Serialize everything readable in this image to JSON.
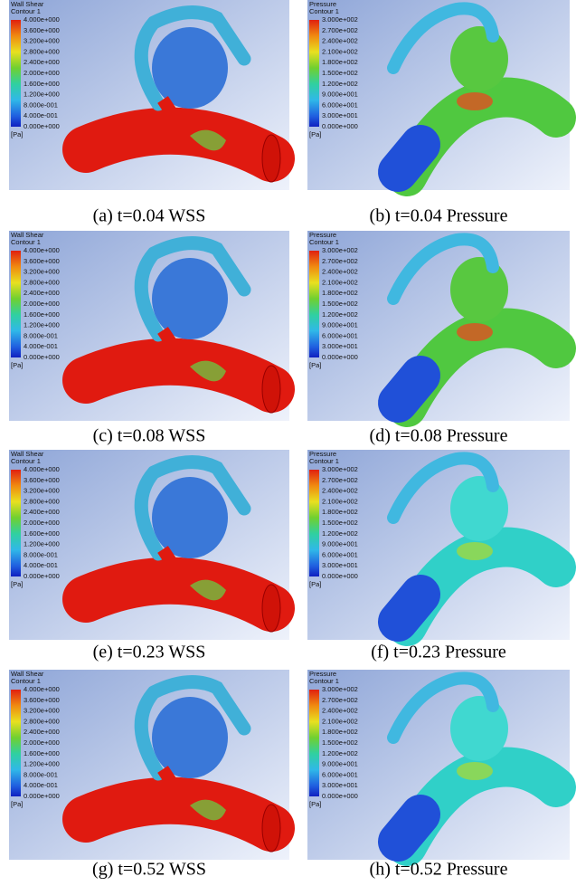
{
  "panels": [
    {
      "legend_title": "Wall Shear",
      "legend_subtitle": "Contour 1",
      "legend_labels": [
        "4.000e+000",
        "3.600e+000",
        "3.200e+000",
        "2.800e+000",
        "2.400e+000",
        "2.000e+000",
        "1.600e+000",
        "1.200e+000",
        "8.000e-001",
        "4.000e-001",
        "0.000e+000"
      ],
      "unit": "[Pa]",
      "caption": "(a) t=0.04 WSS"
    },
    {
      "legend_title": "Pressure",
      "legend_subtitle": "Contour 1",
      "legend_labels": [
        "3.000e+002",
        "2.700e+002",
        "2.400e+002",
        "2.100e+002",
        "1.800e+002",
        "1.500e+002",
        "1.200e+002",
        "9.000e+001",
        "6.000e+001",
        "3.000e+001",
        "0.000e+000"
      ],
      "unit": "[Pa]",
      "caption": "(b) t=0.04 Pressure"
    },
    {
      "legend_title": "Wall Shear",
      "legend_subtitle": "Contour 1",
      "legend_labels": [
        "4.000e+000",
        "3.600e+000",
        "3.200e+000",
        "2.800e+000",
        "2.400e+000",
        "2.000e+000",
        "1.600e+000",
        "1.200e+000",
        "8.000e-001",
        "4.000e-001",
        "0.000e+000"
      ],
      "unit": "[Pa]",
      "caption": "(c) t=0.08 WSS"
    },
    {
      "legend_title": "Pressure",
      "legend_subtitle": "Contour 1",
      "legend_labels": [
        "3.000e+002",
        "2.700e+002",
        "2.400e+002",
        "2.100e+002",
        "1.800e+002",
        "1.500e+002",
        "1.200e+002",
        "9.000e+001",
        "6.000e+001",
        "3.000e+001",
        "0.000e+000"
      ],
      "unit": "[Pa]",
      "caption": "(d) t=0.08 Pressure"
    },
    {
      "legend_title": "Wall Shear",
      "legend_subtitle": "Contour 1",
      "legend_labels": [
        "4.000e+000",
        "3.600e+000",
        "3.200e+000",
        "2.800e+000",
        "2.400e+000",
        "2.000e+000",
        "1.600e+000",
        "1.200e+000",
        "8.000e-001",
        "4.000e-001",
        "0.000e+000"
      ],
      "unit": "[Pa]",
      "caption": "(e) t=0.23 WSS"
    },
    {
      "legend_title": "Pressure",
      "legend_subtitle": "Contour 1",
      "legend_labels": [
        "3.000e+002",
        "2.700e+002",
        "2.400e+002",
        "2.100e+002",
        "1.800e+002",
        "1.500e+002",
        "1.200e+002",
        "9.000e+001",
        "6.000e+001",
        "3.000e+001",
        "0.000e+000"
      ],
      "unit": "[Pa]",
      "caption": "(f) t=0.23 Pressure"
    },
    {
      "legend_title": "Wall Shear",
      "legend_subtitle": "Contour 1",
      "legend_labels": [
        "4.000e+000",
        "3.600e+000",
        "3.200e+000",
        "2.800e+000",
        "2.400e+000",
        "2.000e+000",
        "1.600e+000",
        "1.200e+000",
        "8.000e-001",
        "4.000e-001",
        "0.000e+000"
      ],
      "unit": "[Pa]",
      "caption": "(g) t=0.52 WSS"
    },
    {
      "legend_title": "Pressure",
      "legend_subtitle": "Contour 1",
      "legend_labels": [
        "3.000e+002",
        "2.700e+002",
        "2.400e+002",
        "2.100e+002",
        "1.800e+002",
        "1.500e+002",
        "1.200e+002",
        "9.000e+001",
        "6.000e+001",
        "3.000e+001",
        "0.000e+000"
      ],
      "unit": "[Pa]",
      "caption": "(h)  t=0.52 Pressure"
    }
  ]
}
